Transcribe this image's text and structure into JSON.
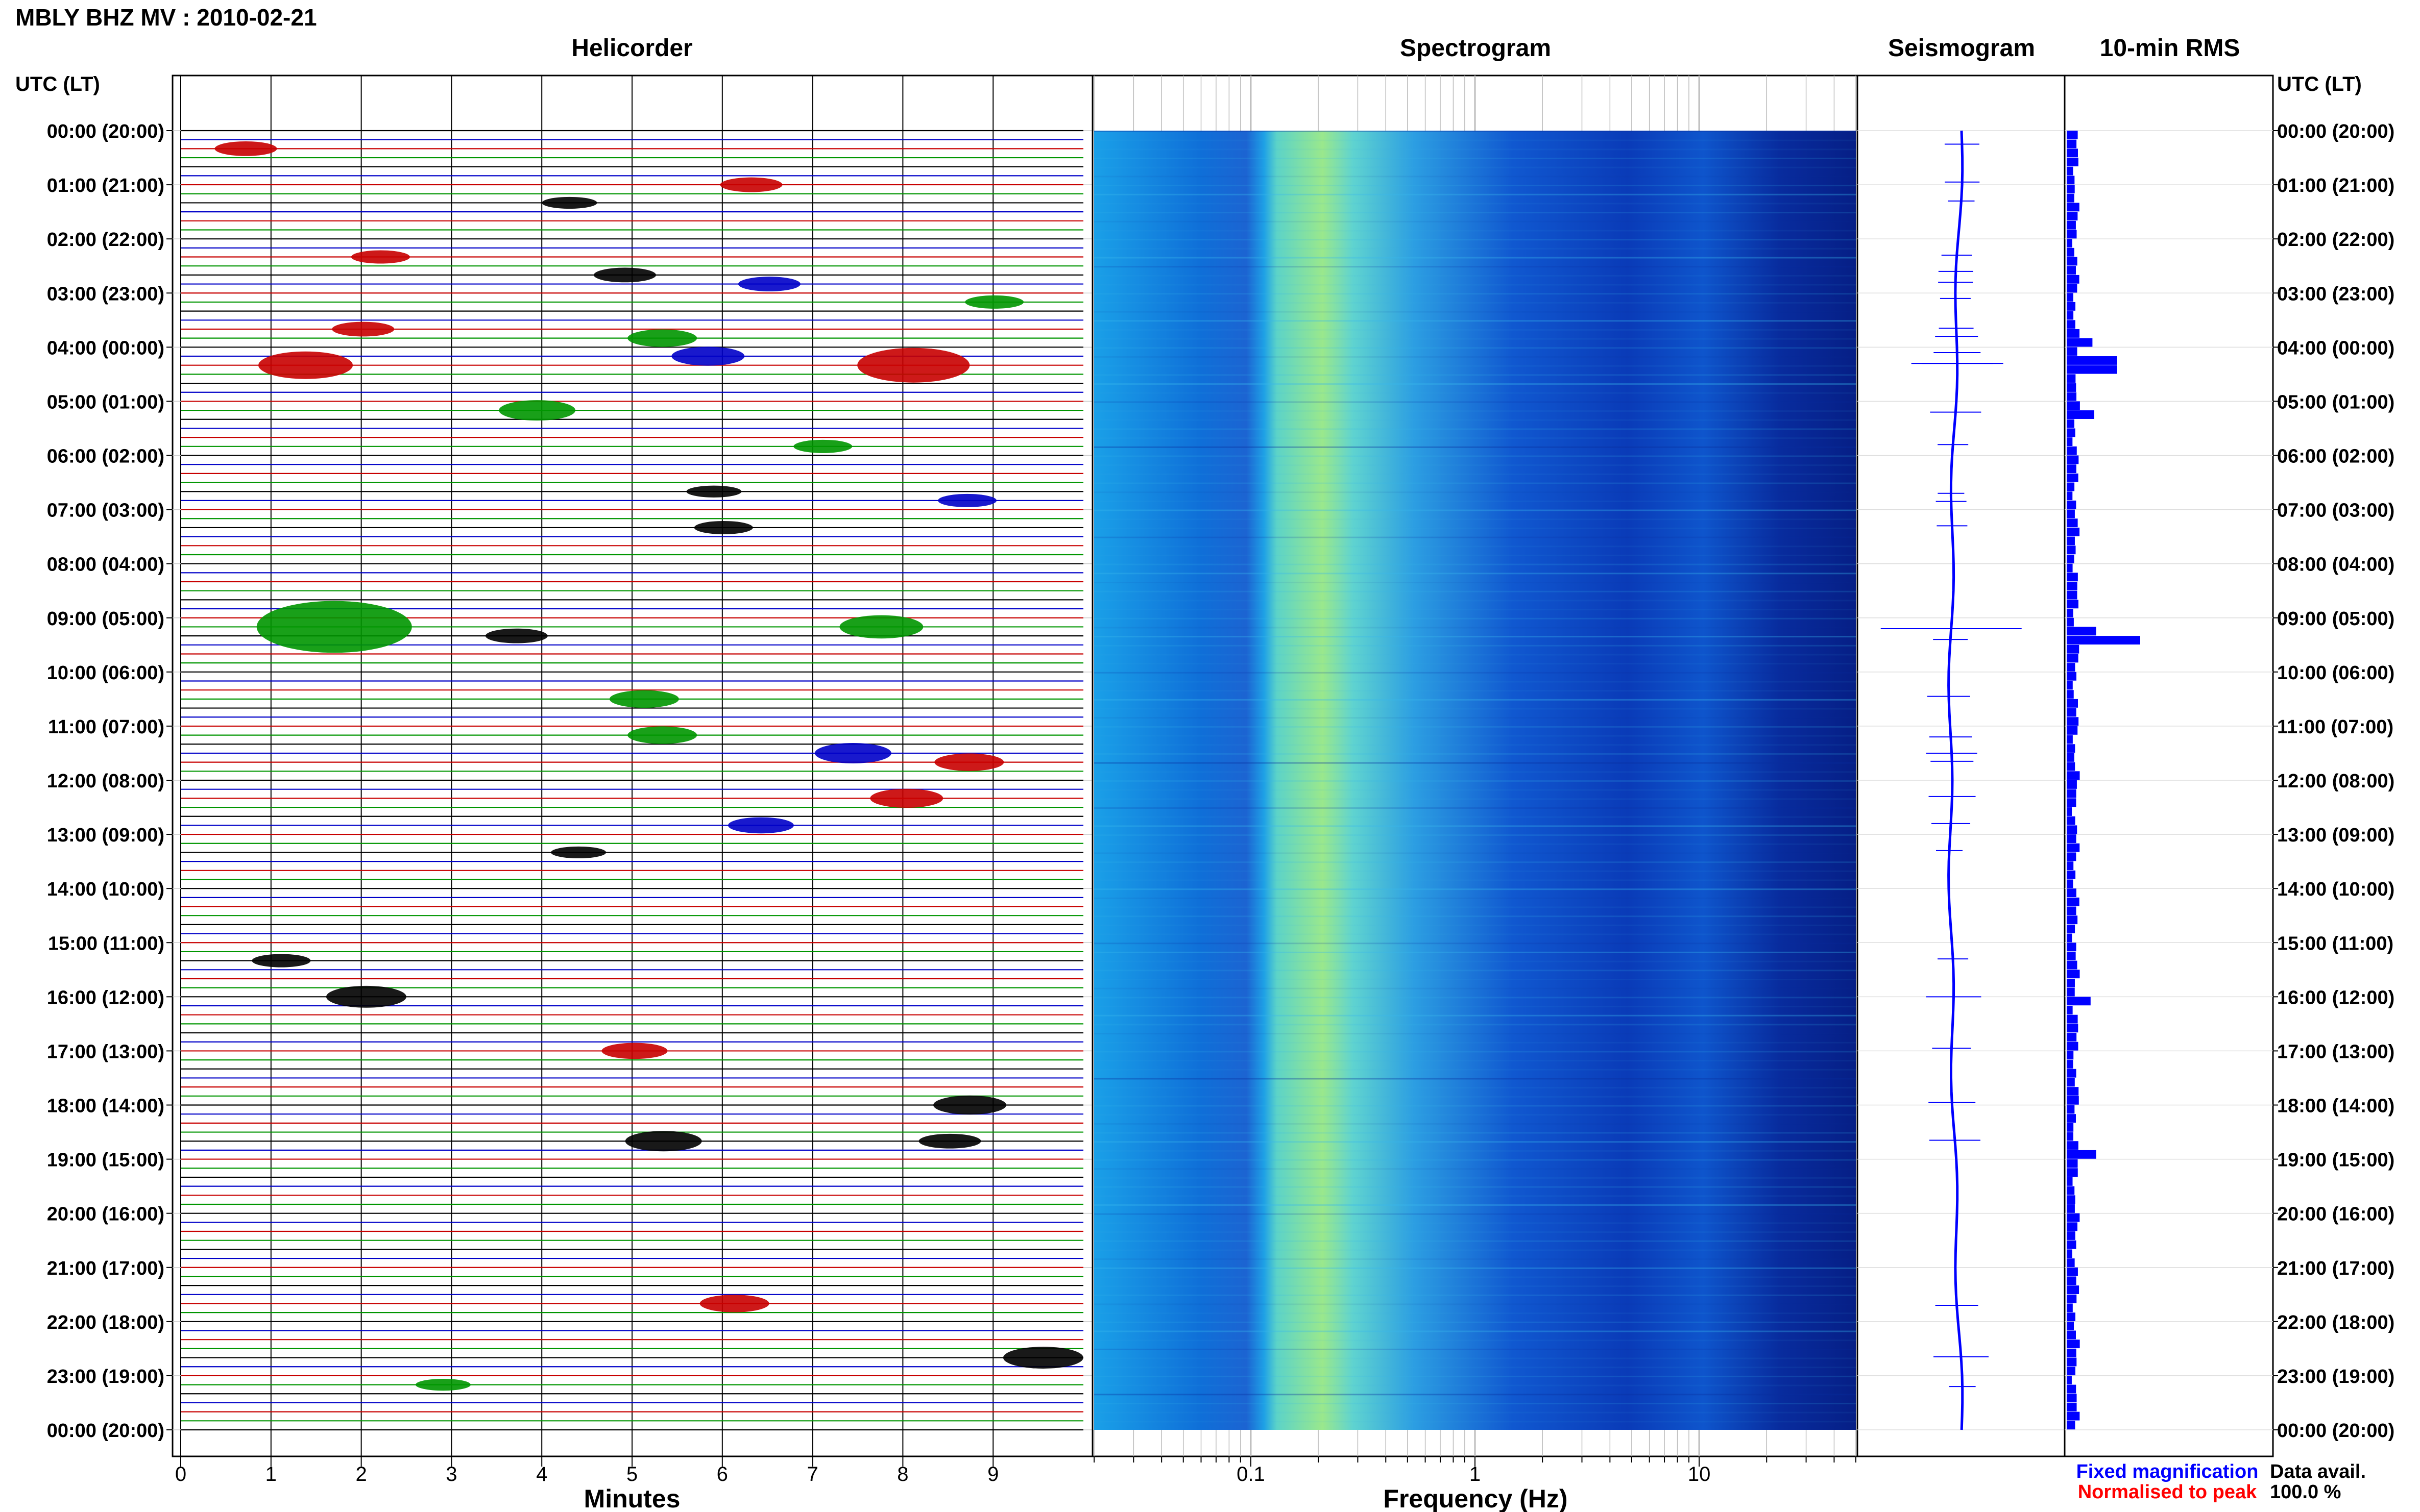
{
  "header": {
    "title": "MBLY BHZ MV : 2010-02-21",
    "utc_label_left": "UTC (LT)",
    "utc_label_right": "UTC (LT)"
  },
  "panels": {
    "helicorder": "Helicorder",
    "spectrogram": "Spectrogram",
    "seismogram": "Seismogram",
    "rms": "10-min RMS"
  },
  "axes": {
    "minutes_label": "Minutes",
    "frequency_label": "Frequency (Hz)",
    "minute_ticks": [
      "0",
      "1",
      "2",
      "3",
      "4",
      "5",
      "6",
      "7",
      "8",
      "9"
    ],
    "freq_ticks": [
      "0.1",
      "1",
      "10"
    ],
    "time_labels": [
      "00:00 (20:00)",
      "01:00 (21:00)",
      "02:00 (22:00)",
      "03:00 (23:00)",
      "04:00 (00:00)",
      "05:00 (01:00)",
      "06:00 (02:00)",
      "07:00 (03:00)",
      "08:00 (04:00)",
      "09:00 (05:00)",
      "10:00 (06:00)",
      "11:00 (07:00)",
      "12:00 (08:00)",
      "13:00 (09:00)",
      "14:00 (10:00)",
      "15:00 (11:00)",
      "16:00 (12:00)",
      "17:00 (13:00)",
      "18:00 (14:00)",
      "19:00 (15:00)",
      "20:00 (16:00)",
      "21:00 (17:00)",
      "22:00 (18:00)",
      "23:00 (19:00)",
      "00:00 (20:00)"
    ]
  },
  "legend": {
    "fixed": "Fixed magnification",
    "normalised": "Normalised to peak",
    "data_avail_label": "Data avail.",
    "data_avail_value": "100.0 %"
  },
  "colors": {
    "trace_cycle": [
      "#000000",
      "#0000c8",
      "#c80000",
      "#009600"
    ],
    "fixed_color": "#0000ff",
    "normalised_color": "#ff0000",
    "rms_bar": "#0000ff",
    "spectrogram_low": "#000080",
    "spectrogram_high": "#ffff00"
  },
  "chart_data": {
    "type": "heatmap",
    "helicorder": {
      "trace_minutes": 10,
      "traces_per_hour": 6,
      "events": [
        {
          "hour": 0.25,
          "minute": 0.6,
          "amp": 0.6
        },
        {
          "hour": 0.95,
          "minute": 6.2,
          "amp": 0.6
        },
        {
          "hour": 1.3,
          "minute": 4.2,
          "amp": 0.4
        },
        {
          "hour": 2.3,
          "minute": 2.1,
          "amp": 0.5
        },
        {
          "hour": 2.6,
          "minute": 4.8,
          "amp": 0.6
        },
        {
          "hour": 2.8,
          "minute": 6.4,
          "amp": 0.6
        },
        {
          "hour": 3.1,
          "minute": 8.9,
          "amp": 0.5
        },
        {
          "hour": 3.65,
          "minute": 1.9,
          "amp": 0.6
        },
        {
          "hour": 3.8,
          "minute": 5.2,
          "amp": 0.8
        },
        {
          "hour": 4.1,
          "minute": 5.7,
          "amp": 0.9
        },
        {
          "hour": 4.3,
          "minute": 1.2,
          "amp": 1.5
        },
        {
          "hour": 4.3,
          "minute": 7.9,
          "amp": 2.0
        },
        {
          "hour": 5.2,
          "minute": 3.8,
          "amp": 1.0
        },
        {
          "hour": 5.8,
          "minute": 7.0,
          "amp": 0.5
        },
        {
          "hour": 6.7,
          "minute": 5.8,
          "amp": 0.4
        },
        {
          "hour": 6.85,
          "minute": 8.6,
          "amp": 0.5
        },
        {
          "hour": 7.3,
          "minute": 5.9,
          "amp": 0.5
        },
        {
          "hour": 9.2,
          "minute": 1.4,
          "amp": 3.2
        },
        {
          "hour": 9.2,
          "minute": 7.6,
          "amp": 1.2
        },
        {
          "hour": 9.4,
          "minute": 3.6,
          "amp": 0.6
        },
        {
          "hour": 10.45,
          "minute": 5.0,
          "amp": 0.8
        },
        {
          "hour": 11.2,
          "minute": 5.2,
          "amp": 0.8
        },
        {
          "hour": 11.5,
          "minute": 7.3,
          "amp": 1.0
        },
        {
          "hour": 11.65,
          "minute": 8.6,
          "amp": 0.8
        },
        {
          "hour": 12.3,
          "minute": 7.9,
          "amp": 0.9
        },
        {
          "hour": 12.8,
          "minute": 6.3,
          "amp": 0.7
        },
        {
          "hour": 13.3,
          "minute": 4.3,
          "amp": 0.4
        },
        {
          "hour": 15.3,
          "minute": 1.0,
          "amp": 0.5
        },
        {
          "hour": 16.0,
          "minute": 1.9,
          "amp": 1.1
        },
        {
          "hour": 16.95,
          "minute": 4.9,
          "amp": 0.7
        },
        {
          "hour": 17.95,
          "minute": 8.6,
          "amp": 0.9
        },
        {
          "hour": 18.65,
          "minute": 5.2,
          "amp": 1.0
        },
        {
          "hour": 18.65,
          "minute": 8.4,
          "amp": 0.6
        },
        {
          "hour": 21.7,
          "minute": 6.0,
          "amp": 0.8
        },
        {
          "hour": 22.65,
          "minute": 9.4,
          "amp": 1.1
        },
        {
          "hour": 23.2,
          "minute": 2.8,
          "amp": 0.4
        }
      ]
    },
    "spectrogram": {
      "x_scale": "log",
      "xlim": [
        0.02,
        50
      ],
      "features": [
        {
          "band": [
            0.13,
            0.35
          ],
          "level": "high"
        },
        {
          "band": [
            0.02,
            0.13
          ],
          "level": "medium"
        },
        {
          "band": [
            1,
            50
          ],
          "level": "low"
        }
      ]
    },
    "rms": {
      "bin_minutes": 10,
      "spikes": [
        {
          "hour": 4.25,
          "value": 0.55
        },
        {
          "hour": 5.2,
          "value": 0.3
        },
        {
          "hour": 9.3,
          "value": 0.8
        },
        {
          "hour": 9.2,
          "value": 0.32
        },
        {
          "hour": 18.8,
          "value": 0.32
        },
        {
          "hour": 16.0,
          "value": 0.26
        },
        {
          "hour": 3.9,
          "value": 0.28
        }
      ]
    }
  }
}
